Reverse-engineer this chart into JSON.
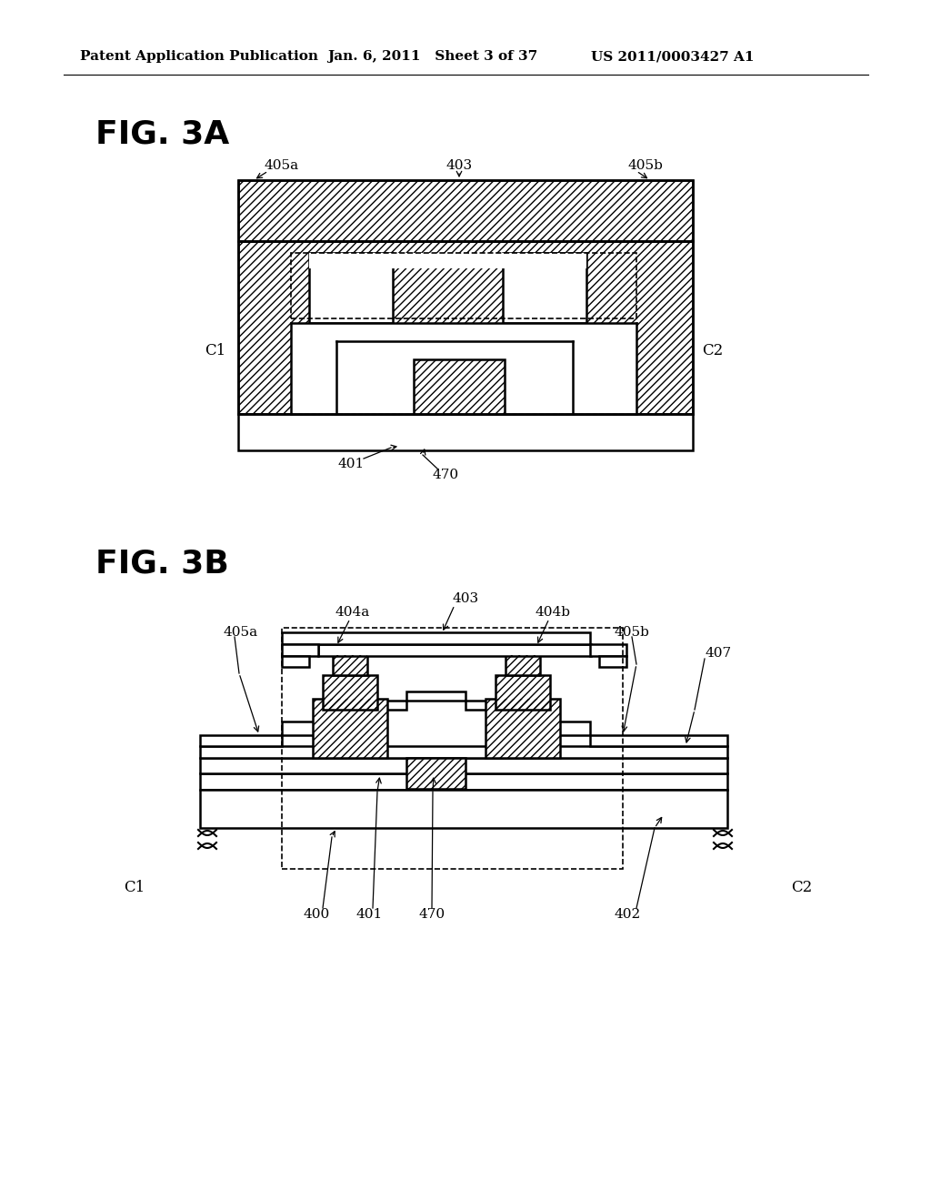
{
  "bg_color": "#ffffff",
  "header_left": "Patent Application Publication",
  "header_mid": "Jan. 6, 2011   Sheet 3 of 37",
  "header_right": "US 2011/0003427 A1",
  "fig3a_label": "FIG. 3A",
  "fig3b_label": "FIG. 3B",
  "lc": "#000000",
  "label_fs": 11,
  "header_fs": 11,
  "fig_label_fs": 26
}
